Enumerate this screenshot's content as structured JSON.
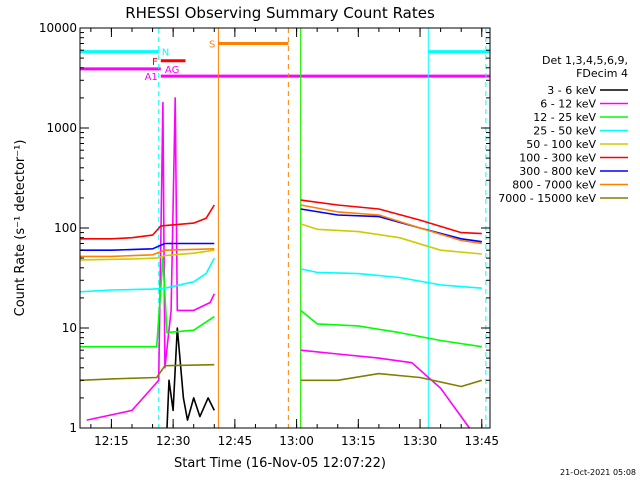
{
  "chart_data": {
    "type": "line",
    "title": "RHESSI Observing Summary Count Rates",
    "xlabel": "Start Time (16-Nov-05 12:07:22)",
    "ylabel": "Count Rate (s⁻¹ detector⁻¹)",
    "yscale": "log",
    "ylim": [
      1,
      10000
    ],
    "xlim": [
      "12:07:22",
      "13:47:00"
    ],
    "x_ticks": [
      "12:15",
      "12:30",
      "12:45",
      "13:00",
      "13:15",
      "13:30",
      "13:45"
    ],
    "y_ticks": [
      "1",
      "10",
      "100",
      "1000",
      "10000"
    ],
    "legend_header": [
      "Det 1,3,4,5,6,9,",
      "FDecim 4"
    ],
    "legend_position": "right",
    "series": [
      {
        "name": "3 - 6 keV",
        "color": "#000000",
        "segments": [
          [
            [
              "12:28:30",
              1
            ],
            [
              "12:29:00",
              3
            ],
            [
              "12:30:00",
              1.5
            ],
            [
              "12:31:00",
              10
            ],
            [
              "12:32:30",
              2
            ],
            [
              "12:33:30",
              1.2
            ],
            [
              "12:35:00",
              2
            ],
            [
              "12:36:30",
              1.3
            ],
            [
              "12:38:30",
              2
            ],
            [
              "12:40:00",
              1.5
            ]
          ]
        ]
      },
      {
        "name": "6 - 12 keV",
        "color": "#ff00ff",
        "segments": [
          [
            [
              "12:09:00",
              1.2
            ],
            [
              "12:20:00",
              1.5
            ],
            [
              "12:26:30",
              3
            ],
            [
              "12:27:30",
              1800
            ],
            [
              "12:28:00",
              4
            ],
            [
              "12:29:30",
              15
            ],
            [
              "12:30:30",
              2000
            ],
            [
              "12:31:00",
              15
            ],
            [
              "12:35:00",
              15
            ],
            [
              "12:39:00",
              18
            ],
            [
              "12:40:00",
              22
            ]
          ],
          [
            [
              "13:01:00",
              6
            ],
            [
              "13:10:00",
              5.5
            ],
            [
              "13:20:00",
              5
            ],
            [
              "13:28:00",
              4.5
            ],
            [
              "13:35:00",
              2.5
            ],
            [
              "13:40:00",
              1.3
            ],
            [
              "13:42:00",
              1
            ]
          ]
        ]
      },
      {
        "name": "12 - 25 keV",
        "color": "#00ff00",
        "segments": [
          [
            [
              "12:07:22",
              6.5
            ],
            [
              "12:15:00",
              6.5
            ],
            [
              "12:26:00",
              6.5
            ],
            [
              "12:27:30",
              50
            ],
            [
              "12:28:30",
              9
            ],
            [
              "12:35:00",
              9.5
            ],
            [
              "12:40:00",
              13
            ]
          ],
          [
            [
              "13:01:00",
              15
            ],
            [
              "13:05:00",
              11
            ],
            [
              "13:15:00",
              10.5
            ],
            [
              "13:25:00",
              9
            ],
            [
              "13:35:00",
              7.5
            ],
            [
              "13:45:00",
              6.5
            ]
          ]
        ]
      },
      {
        "name": "25 - 50 keV",
        "color": "#00ffff",
        "segments": [
          [
            [
              "12:07:22",
              23
            ],
            [
              "12:15:00",
              24
            ],
            [
              "12:25:00",
              24.5
            ],
            [
              "12:28:00",
              25
            ],
            [
              "12:35:00",
              29
            ],
            [
              "12:38:00",
              35
            ],
            [
              "12:40:00",
              50
            ]
          ],
          [
            [
              "13:01:00",
              39
            ],
            [
              "13:05:00",
              36
            ],
            [
              "13:15:00",
              35
            ],
            [
              "13:25:00",
              32
            ],
            [
              "13:35:00",
              27
            ],
            [
              "13:45:00",
              25
            ]
          ]
        ]
      },
      {
        "name": "50 - 100 keV",
        "color": "#cccc00",
        "segments": [
          [
            [
              "12:07:22",
              48
            ],
            [
              "12:20:00",
              49
            ],
            [
              "12:26:00",
              50
            ],
            [
              "12:28:00",
              53
            ],
            [
              "12:35:00",
              56
            ],
            [
              "12:40:00",
              60
            ]
          ],
          [
            [
              "13:01:00",
              110
            ],
            [
              "13:05:00",
              97
            ],
            [
              "13:15:00",
              92
            ],
            [
              "13:25:00",
              80
            ],
            [
              "13:35:00",
              60
            ],
            [
              "13:45:00",
              55
            ]
          ]
        ]
      },
      {
        "name": "100 - 300 keV",
        "color": "#ff0000",
        "segments": [
          [
            [
              "12:07:22",
              78
            ],
            [
              "12:15:00",
              78
            ],
            [
              "12:20:00",
              80
            ],
            [
              "12:25:00",
              85
            ],
            [
              "12:27:00",
              105
            ],
            [
              "12:35:00",
              112
            ],
            [
              "12:38:00",
              125
            ],
            [
              "12:40:00",
              170
            ]
          ],
          [
            [
              "13:01:00",
              190
            ],
            [
              "13:10:00",
              170
            ],
            [
              "13:20:00",
              155
            ],
            [
              "13:30:00",
              120
            ],
            [
              "13:40:00",
              90
            ],
            [
              "13:45:00",
              88
            ]
          ]
        ]
      },
      {
        "name": "300 - 800 keV",
        "color": "#0000ff",
        "segments": [
          [
            [
              "12:07:22",
              60
            ],
            [
              "12:15:00",
              60
            ],
            [
              "12:25:00",
              62
            ],
            [
              "12:28:00",
              70
            ],
            [
              "12:40:00",
              70
            ]
          ],
          [
            [
              "13:01:00",
              155
            ],
            [
              "13:10:00",
              135
            ],
            [
              "13:20:00",
              130
            ],
            [
              "13:30:00",
              100
            ],
            [
              "13:40:00",
              78
            ],
            [
              "13:45:00",
              73
            ]
          ]
        ]
      },
      {
        "name": "800 - 7000 keV",
        "color": "#ff8000",
        "segments": [
          [
            [
              "12:07:22",
              52
            ],
            [
              "12:15:00",
              52
            ],
            [
              "12:25:00",
              54
            ],
            [
              "12:28:00",
              60
            ],
            [
              "12:40:00",
              62
            ]
          ],
          [
            [
              "13:01:00",
              170
            ],
            [
              "13:10:00",
              145
            ],
            [
              "13:20:00",
              135
            ],
            [
              "13:30:00",
              100
            ],
            [
              "13:40:00",
              75
            ],
            [
              "13:45:00",
              70
            ]
          ]
        ]
      },
      {
        "name": "7000 - 15000 keV",
        "color": "#808000",
        "segments": [
          [
            [
              "12:07:22",
              3
            ],
            [
              "12:15:00",
              3.1
            ],
            [
              "12:26:00",
              3.2
            ],
            [
              "12:28:00",
              4.2
            ],
            [
              "12:40:00",
              4.3
            ]
          ],
          [
            [
              "13:01:00",
              3
            ],
            [
              "13:10:00",
              3
            ],
            [
              "13:20:00",
              3.5
            ],
            [
              "13:30:00",
              3.2
            ],
            [
              "13:40:00",
              2.6
            ],
            [
              "13:45:00",
              3
            ]
          ]
        ]
      }
    ],
    "flag_bars": [
      {
        "label": "N",
        "color": "#00ffff",
        "y": 5800,
        "segments": [
          [
            "12:07:22",
            "12:26:30"
          ],
          [
            "13:32:00",
            "13:47:00"
          ]
        ]
      },
      {
        "label": "F",
        "color": "#ff0000",
        "y": 4700,
        "segments": [
          [
            "12:27:00",
            "12:33:00"
          ]
        ]
      },
      {
        "label": "AG",
        "color": "#ff00ff",
        "y": 3900,
        "segments": [
          [
            "12:07:22",
            "12:27:00"
          ]
        ]
      },
      {
        "label": "A1",
        "color": "#ff00ff",
        "y": 3300,
        "segments": [
          [
            "12:27:00",
            "13:47:00"
          ]
        ]
      },
      {
        "label": "S",
        "color": "#ff8000",
        "y": 7000,
        "segments": [
          [
            "12:41:00",
            "12:58:00"
          ]
        ]
      }
    ],
    "vertical_lines": [
      {
        "time": "12:07:22",
        "color": "#00ffff",
        "style": "solid"
      },
      {
        "time": "12:26:30",
        "color": "#00ffff",
        "style": "dashed"
      },
      {
        "time": "12:41:00",
        "color": "#ff8000",
        "style": "solid"
      },
      {
        "time": "12:58:00",
        "color": "#ff8000",
        "style": "dashed"
      },
      {
        "time": "13:01:00",
        "color": "#ff8000",
        "style": "solid"
      },
      {
        "time": "13:01:00",
        "color": "#00ff00",
        "style": "solid"
      },
      {
        "time": "13:32:00",
        "color": "#00ffff",
        "style": "solid"
      },
      {
        "time": "13:46:00",
        "color": "#00ffff",
        "style": "dashed"
      }
    ]
  },
  "timestamp": "21-Oct-2021 05:08"
}
